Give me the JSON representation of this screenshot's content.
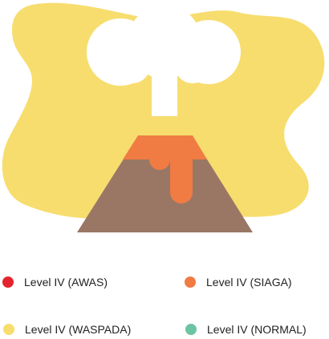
{
  "illustration": {
    "colors": {
      "background_blob": "#f7dd6e",
      "smoke": "#ffffff",
      "lava": "#f07c43",
      "mountain": "#9a7765"
    }
  },
  "legend": [
    {
      "label": "Level IV (AWAS)",
      "color": "#e3242e"
    },
    {
      "label": "Level IV (SIAGA)",
      "color": "#f07c43"
    },
    {
      "label": "Level IV (WASPADA)",
      "color": "#f7dd6e"
    },
    {
      "label": "Level IV (NORMAL)",
      "color": "#6cc4a3"
    }
  ]
}
